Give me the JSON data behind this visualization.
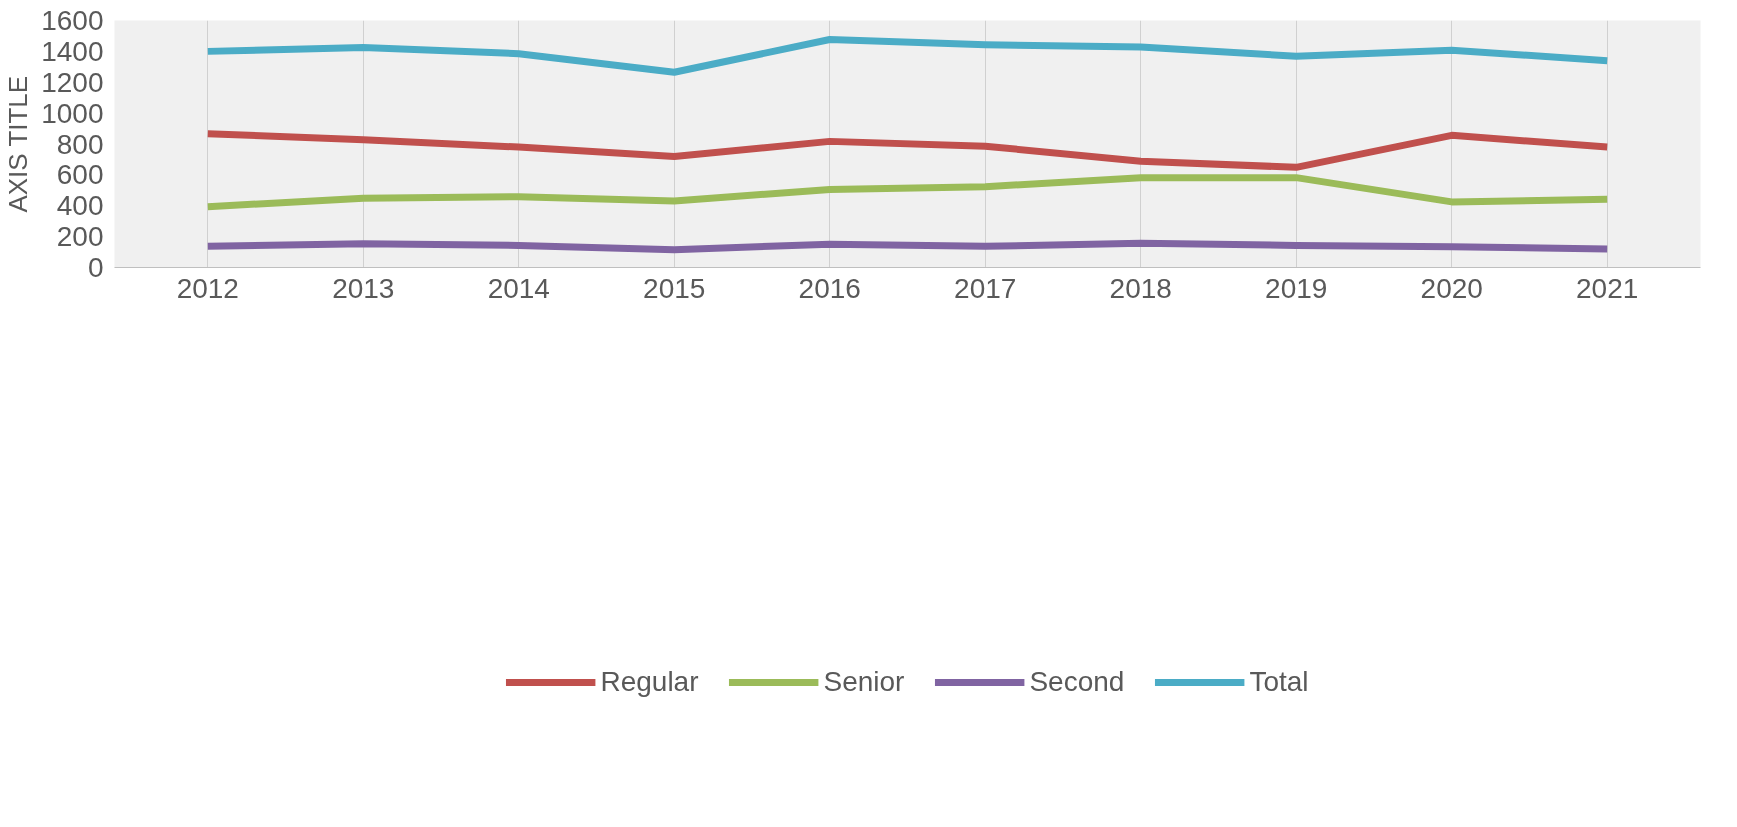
{
  "chart_data": {
    "type": "line",
    "ylabel": "AXIS TITLE",
    "categories": [
      "2012",
      "2013",
      "2014",
      "2015",
      "2016",
      "2017",
      "2018",
      "2019",
      "2020",
      "2021"
    ],
    "series": [
      {
        "name": "Regular",
        "color": "#c0504d",
        "values": [
          867,
          828,
          780,
          719,
          817,
          786,
          688,
          649,
          856,
          780
        ]
      },
      {
        "name": "Senior",
        "color": "#9bbb59",
        "values": [
          394,
          448,
          459,
          431,
          506,
          523,
          582,
          582,
          425,
          442
        ]
      },
      {
        "name": "Second",
        "color": "#8064a2",
        "values": [
          137,
          154,
          143,
          115,
          151,
          137,
          157,
          143,
          134,
          120
        ]
      },
      {
        "name": "Total",
        "color": "#4bacc6",
        "values": [
          1400,
          1425,
          1385,
          1265,
          1477,
          1443,
          1429,
          1368,
          1407,
          1340
        ]
      }
    ],
    "ylim": [
      0,
      1600
    ],
    "yticks": [
      0,
      200,
      400,
      600,
      800,
      1000,
      1200,
      1400,
      1600
    ],
    "grid": "x",
    "legend": "bottom",
    "line_style": "solid"
  }
}
